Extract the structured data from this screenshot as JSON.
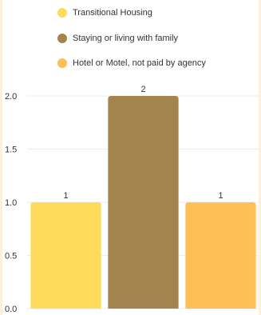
{
  "chart_data": {
    "type": "bar",
    "categories": [
      "Transitional Housing",
      "Staying or living with family",
      "Hotel or Motel, not paid by agency"
    ],
    "values": [
      1,
      2,
      1
    ],
    "data_labels": [
      "1",
      "2",
      "1"
    ],
    "colors": [
      "#fddb5b",
      "#a3844d",
      "#ffbe56"
    ],
    "ylim": [
      0,
      2
    ],
    "yticks": [
      "0.0",
      "0.5",
      "1.0",
      "1.5",
      "2.0"
    ],
    "legend_position": "top",
    "grid": true
  }
}
